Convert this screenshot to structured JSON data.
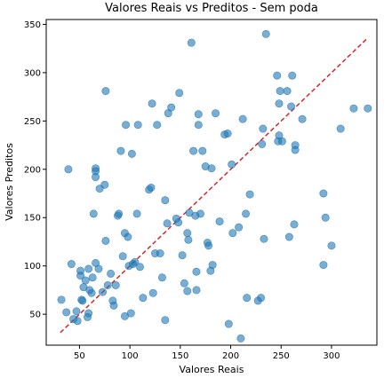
{
  "chart_data": {
    "type": "scatter",
    "title": "Valores Reais vs Preditos - Sem poda",
    "xlabel": "Valores Reais",
    "ylabel": "Valores Preditos",
    "xlim": [
      17,
      345
    ],
    "ylim": [
      18,
      355
    ],
    "xticks": [
      50,
      100,
      150,
      200,
      250,
      300
    ],
    "yticks": [
      50,
      100,
      150,
      200,
      250,
      300,
      350
    ],
    "grid": false,
    "legend": "none",
    "point_color": "#1f77b4",
    "line_color": "#d62728",
    "reference_line": {
      "style": "dashed",
      "x": [
        31,
        336
      ],
      "y": [
        31,
        336
      ]
    },
    "points": [
      {
        "x": 32,
        "y": 65
      },
      {
        "x": 37,
        "y": 52
      },
      {
        "x": 39,
        "y": 200
      },
      {
        "x": 42,
        "y": 102
      },
      {
        "x": 44,
        "y": 45
      },
      {
        "x": 47,
        "y": 53
      },
      {
        "x": 48,
        "y": 43
      },
      {
        "x": 51,
        "y": 90
      },
      {
        "x": 51,
        "y": 95
      },
      {
        "x": 52,
        "y": 65
      },
      {
        "x": 53,
        "y": 64
      },
      {
        "x": 54,
        "y": 78
      },
      {
        "x": 56,
        "y": 85
      },
      {
        "x": 58,
        "y": 47
      },
      {
        "x": 59,
        "y": 51
      },
      {
        "x": 59,
        "y": 97
      },
      {
        "x": 60,
        "y": 75
      },
      {
        "x": 62,
        "y": 72
      },
      {
        "x": 63,
        "y": 88
      },
      {
        "x": 64,
        "y": 154
      },
      {
        "x": 66,
        "y": 103
      },
      {
        "x": 66,
        "y": 192
      },
      {
        "x": 66,
        "y": 198
      },
      {
        "x": 66,
        "y": 201
      },
      {
        "x": 69,
        "y": 97
      },
      {
        "x": 70,
        "y": 180
      },
      {
        "x": 73,
        "y": 73
      },
      {
        "x": 75,
        "y": 184
      },
      {
        "x": 76,
        "y": 126
      },
      {
        "x": 76,
        "y": 281
      },
      {
        "x": 78,
        "y": 80
      },
      {
        "x": 81,
        "y": 92
      },
      {
        "x": 83,
        "y": 64
      },
      {
        "x": 84,
        "y": 59
      },
      {
        "x": 86,
        "y": 80
      },
      {
        "x": 88,
        "y": 152
      },
      {
        "x": 89,
        "y": 154
      },
      {
        "x": 91,
        "y": 219
      },
      {
        "x": 93,
        "y": 110
      },
      {
        "x": 95,
        "y": 48
      },
      {
        "x": 95,
        "y": 134
      },
      {
        "x": 96,
        "y": 246
      },
      {
        "x": 98,
        "y": 130
      },
      {
        "x": 99,
        "y": 100
      },
      {
        "x": 101,
        "y": 51
      },
      {
        "x": 102,
        "y": 216
      },
      {
        "x": 103,
        "y": 102
      },
      {
        "x": 105,
        "y": 104
      },
      {
        "x": 107,
        "y": 154
      },
      {
        "x": 108,
        "y": 246
      },
      {
        "x": 110,
        "y": 99
      },
      {
        "x": 113,
        "y": 67
      },
      {
        "x": 119,
        "y": 179
      },
      {
        "x": 121,
        "y": 181
      },
      {
        "x": 122,
        "y": 268
      },
      {
        "x": 123,
        "y": 72
      },
      {
        "x": 125,
        "y": 113
      },
      {
        "x": 127,
        "y": 246
      },
      {
        "x": 130,
        "y": 113
      },
      {
        "x": 132,
        "y": 88
      },
      {
        "x": 135,
        "y": 44
      },
      {
        "x": 135,
        "y": 168
      },
      {
        "x": 137,
        "y": 144
      },
      {
        "x": 138,
        "y": 258
      },
      {
        "x": 141,
        "y": 264
      },
      {
        "x": 146,
        "y": 149
      },
      {
        "x": 148,
        "y": 145
      },
      {
        "x": 149,
        "y": 279
      },
      {
        "x": 152,
        "y": 111
      },
      {
        "x": 154,
        "y": 82
      },
      {
        "x": 157,
        "y": 74
      },
      {
        "x": 157,
        "y": 134
      },
      {
        "x": 158,
        "y": 127
      },
      {
        "x": 159,
        "y": 155
      },
      {
        "x": 161,
        "y": 331
      },
      {
        "x": 163,
        "y": 219
      },
      {
        "x": 165,
        "y": 152
      },
      {
        "x": 166,
        "y": 94
      },
      {
        "x": 166,
        "y": 75
      },
      {
        "x": 168,
        "y": 246
      },
      {
        "x": 168,
        "y": 257
      },
      {
        "x": 170,
        "y": 154
      },
      {
        "x": 172,
        "y": 219
      },
      {
        "x": 175,
        "y": 203
      },
      {
        "x": 177,
        "y": 124
      },
      {
        "x": 178,
        "y": 121
      },
      {
        "x": 180,
        "y": 95
      },
      {
        "x": 181,
        "y": 201
      },
      {
        "x": 182,
        "y": 101
      },
      {
        "x": 185,
        "y": 258
      },
      {
        "x": 189,
        "y": 146
      },
      {
        "x": 194,
        "y": 236
      },
      {
        "x": 197,
        "y": 237
      },
      {
        "x": 198,
        "y": 40
      },
      {
        "x": 201,
        "y": 205
      },
      {
        "x": 202,
        "y": 134
      },
      {
        "x": 208,
        "y": 140
      },
      {
        "x": 210,
        "y": 25
      },
      {
        "x": 212,
        "y": 252
      },
      {
        "x": 215,
        "y": 154
      },
      {
        "x": 216,
        "y": 67
      },
      {
        "x": 219,
        "y": 174
      },
      {
        "x": 227,
        "y": 64
      },
      {
        "x": 230,
        "y": 67
      },
      {
        "x": 231,
        "y": 226
      },
      {
        "x": 232,
        "y": 242
      },
      {
        "x": 233,
        "y": 128
      },
      {
        "x": 235,
        "y": 340
      },
      {
        "x": 246,
        "y": 297
      },
      {
        "x": 247,
        "y": 229
      },
      {
        "x": 248,
        "y": 235
      },
      {
        "x": 248,
        "y": 268
      },
      {
        "x": 249,
        "y": 281
      },
      {
        "x": 251,
        "y": 229
      },
      {
        "x": 256,
        "y": 281
      },
      {
        "x": 258,
        "y": 130
      },
      {
        "x": 260,
        "y": 265
      },
      {
        "x": 261,
        "y": 297
      },
      {
        "x": 263,
        "y": 143
      },
      {
        "x": 264,
        "y": 225
      },
      {
        "x": 264,
        "y": 220
      },
      {
        "x": 271,
        "y": 252
      },
      {
        "x": 292,
        "y": 101
      },
      {
        "x": 292,
        "y": 175
      },
      {
        "x": 294,
        "y": 150
      },
      {
        "x": 300,
        "y": 121
      },
      {
        "x": 309,
        "y": 242
      },
      {
        "x": 322,
        "y": 263
      },
      {
        "x": 336,
        "y": 263
      }
    ]
  }
}
